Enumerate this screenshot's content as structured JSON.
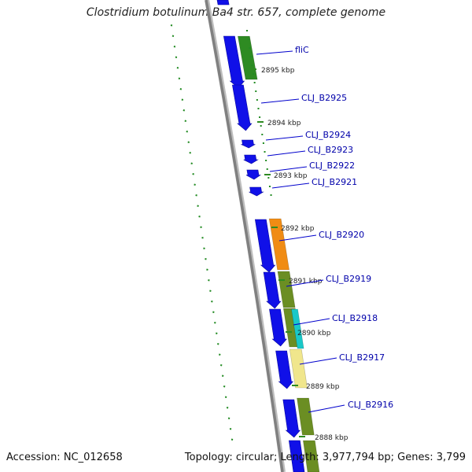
{
  "title": "Clostridium botulinum Ba4 str. 657, complete genome",
  "accession": "Accession: NC_012658",
  "summary": "Topology: circular; Length: 3,977,794 bp; Genes: 3,799",
  "gene_labels": [
    "fliC",
    "CLJ_B2925",
    "CLJ_B2924",
    "CLJ_B2923",
    "CLJ_B2922",
    "CLJ_B2921",
    "CLJ_B2920",
    "CLJ_B2919",
    "CLJ_B2918",
    "CLJ_B2917",
    "CLJ_B2916"
  ],
  "kbp_labels": [
    "2895 kbp",
    "2894 kbp",
    "2893 kbp",
    "2892 kbp",
    "2891 kbp",
    "2890 kbp",
    "2889 kbp",
    "2888 kbp"
  ],
  "colors": {
    "cds": "#1010e8",
    "backbone": "#8c8c8c",
    "gc_ticks": "#228b22",
    "cog_green": "#2e8b22",
    "cog_orange": "#f08c14",
    "cog_olive": "#6b8e23",
    "cog_cyan": "#19c8c8",
    "cog_pale": "#f0e68c",
    "label": "#0000aa"
  }
}
